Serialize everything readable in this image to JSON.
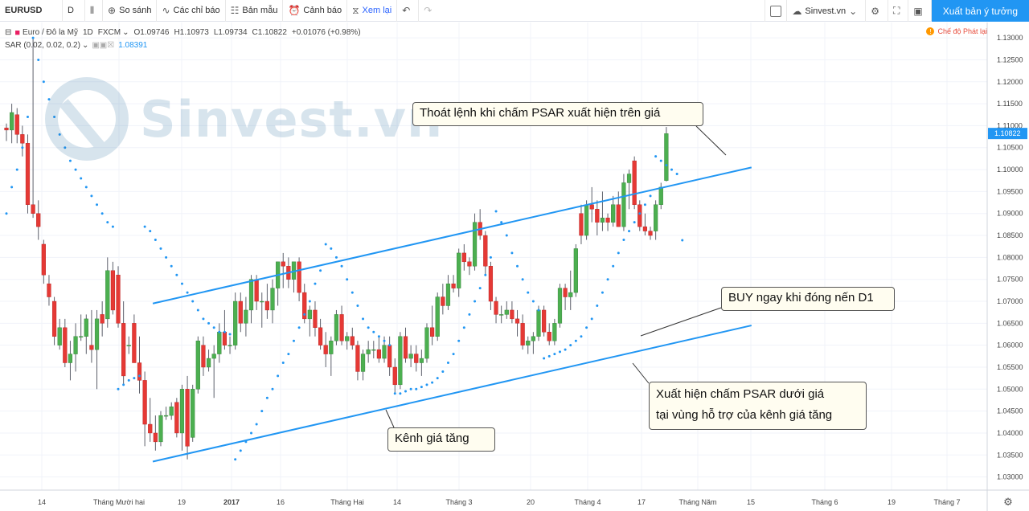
{
  "toolbar": {
    "symbol": "EURUSD",
    "interval": "D",
    "compare_label": "So sánh",
    "indicators_label": "Các chỉ báo",
    "templates_label": "Bản mẫu",
    "alert_label": "Cảnh báo",
    "replay_label": "Xem lại",
    "account_label": "Sinvest.vn",
    "publish_label": "Xuất bản ý tưởng"
  },
  "legend": {
    "name": "Euro / Đô la Mỹ",
    "timeframe": "1D",
    "exchange": "FXCM",
    "open": "O1.09746",
    "high": "H1.10973",
    "low": "L1.09734",
    "close": "C1.10822",
    "change": "+0.01076 (+0.98%)",
    "indicator": "SAR (0.02, 0.02, 0.2)",
    "indicator_value": "1.08391"
  },
  "mode_label": "Chế độ Phát lại",
  "watermark": "Sinvest.vn",
  "annotations": {
    "exit": "Thoát lệnh khi chấm PSAR xuất hiện trên giá",
    "buy": "BUY ngay khi đóng nến D1",
    "psar_line1": "Xuất hiện chấm PSAR dưới giá",
    "psar_line2": "tại vùng hỗ trợ của kênh giá tăng",
    "channel": "Kênh giá tăng"
  },
  "chart_data": {
    "type": "candlestick",
    "y_axis": {
      "ticks": [
        "1.13000",
        "1.12500",
        "1.12000",
        "1.11500",
        "1.11000",
        "1.10500",
        "1.10000",
        "1.09500",
        "1.09000",
        "1.08500",
        "1.08000",
        "1.07500",
        "1.07000",
        "1.06500",
        "1.06000",
        "1.05500",
        "1.05000",
        "1.04500",
        "1.04000",
        "1.03500",
        "1.03000"
      ],
      "min": 1.027,
      "max": 1.1335,
      "last_price": "1.10822"
    },
    "x_axis": {
      "ticks": [
        {
          "label": "14",
          "x": 52
        },
        {
          "label": "Tháng Mười hai",
          "x": 148
        },
        {
          "label": "19",
          "x": 226
        },
        {
          "label": "2017",
          "x": 288
        },
        {
          "label": "16",
          "x": 349
        },
        {
          "label": "Tháng Hai",
          "x": 432
        },
        {
          "label": "14",
          "x": 494
        },
        {
          "label": "Tháng 3",
          "x": 571
        },
        {
          "label": "20",
          "x": 660
        },
        {
          "label": "Tháng 4",
          "x": 731
        },
        {
          "label": "17",
          "x": 798
        },
        {
          "label": "Tháng Năm",
          "x": 868
        },
        {
          "label": "15",
          "x": 934
        },
        {
          "label": "Tháng 6",
          "x": 1026
        },
        {
          "label": "19",
          "x": 1109
        },
        {
          "label": "Tháng 7",
          "x": 1178
        }
      ]
    },
    "series_indicator": "SAR (0.02, 0.02, 0.2)",
    "candles": [
      [
        1.1095,
        1.1105,
        1.1065,
        1.109
      ],
      [
        1.109,
        1.115,
        1.106,
        1.113
      ],
      [
        1.1125,
        1.114,
        1.106,
        1.108
      ],
      [
        1.108,
        1.11,
        1.103,
        1.106
      ],
      [
        1.106,
        1.108,
        1.09,
        1.092
      ],
      [
        1.092,
        1.13,
        1.089,
        1.09
      ],
      [
        1.09,
        1.093,
        1.084,
        1.087
      ],
      [
        1.083,
        1.084,
        1.074,
        1.076
      ],
      [
        1.074,
        1.076,
        1.069,
        1.071
      ],
      [
        1.07,
        1.071,
        1.06,
        1.062
      ],
      [
        1.06,
        1.066,
        1.059,
        1.064
      ],
      [
        1.064,
        1.066,
        1.055,
        1.056
      ],
      [
        1.056,
        1.061,
        1.052,
        1.058
      ],
      [
        1.058,
        1.065,
        1.054,
        1.062
      ],
      [
        1.062,
        1.067,
        1.061,
        1.062
      ],
      [
        1.062,
        1.067,
        1.058,
        1.066
      ],
      [
        1.06,
        1.068,
        1.056,
        1.059
      ],
      [
        1.059,
        1.068,
        1.05,
        1.066
      ],
      [
        1.067,
        1.07,
        1.062,
        1.065
      ],
      [
        1.066,
        1.08,
        1.064,
        1.077
      ],
      [
        1.077,
        1.079,
        1.067,
        1.068
      ],
      [
        1.076,
        1.078,
        1.064,
        1.065
      ],
      [
        1.065,
        1.07,
        1.051,
        1.053
      ],
      [
        1.06,
        1.062,
        1.058,
        1.06
      ],
      [
        1.065,
        1.067,
        1.056,
        1.056
      ],
      [
        1.056,
        1.062,
        1.049,
        1.052
      ],
      [
        1.052,
        1.054,
        1.037,
        1.042
      ],
      [
        1.042,
        1.048,
        1.038,
        1.04
      ],
      [
        1.04,
        1.044,
        1.036,
        1.038
      ],
      [
        1.038,
        1.045,
        1.037,
        1.044
      ],
      [
        1.044,
        1.046,
        1.043,
        1.044
      ],
      [
        1.044,
        1.047,
        1.043,
        1.046
      ],
      [
        1.047,
        1.048,
        1.039,
        1.04
      ],
      [
        1.04,
        1.051,
        1.036,
        1.05
      ],
      [
        1.05,
        1.053,
        1.034,
        1.037
      ],
      [
        1.039,
        1.051,
        1.038,
        1.05
      ],
      [
        1.05,
        1.062,
        1.049,
        1.061
      ],
      [
        1.06,
        1.062,
        1.053,
        1.055
      ],
      [
        1.055,
        1.059,
        1.054,
        1.057
      ],
      [
        1.057,
        1.06,
        1.048,
        1.058
      ],
      [
        1.058,
        1.065,
        1.056,
        1.063
      ],
      [
        1.063,
        1.068,
        1.059,
        1.06
      ],
      [
        1.06,
        1.062,
        1.058,
        1.06
      ],
      [
        1.06,
        1.072,
        1.059,
        1.07
      ],
      [
        1.07,
        1.072,
        1.063,
        1.065
      ],
      [
        1.065,
        1.071,
        1.062,
        1.068
      ],
      [
        1.068,
        1.076,
        1.065,
        1.075
      ],
      [
        1.075,
        1.076,
        1.068,
        1.07
      ],
      [
        1.07,
        1.072,
        1.064,
        1.07
      ],
      [
        1.07,
        1.074,
        1.066,
        1.068
      ],
      [
        1.068,
        1.075,
        1.065,
        1.073
      ],
      [
        1.073,
        1.079,
        1.069,
        1.079
      ],
      [
        1.079,
        1.081,
        1.073,
        1.078
      ],
      [
        1.078,
        1.08,
        1.073,
        1.075
      ],
      [
        1.075,
        1.079,
        1.072,
        1.079
      ],
      [
        1.079,
        1.08,
        1.07,
        1.072
      ],
      [
        1.072,
        1.074,
        1.065,
        1.066
      ],
      [
        1.066,
        1.069,
        1.062,
        1.068
      ],
      [
        1.068,
        1.07,
        1.062,
        1.064
      ],
      [
        1.064,
        1.066,
        1.059,
        1.06
      ],
      [
        1.06,
        1.063,
        1.055,
        1.058
      ],
      [
        1.058,
        1.062,
        1.053,
        1.061
      ],
      [
        1.061,
        1.068,
        1.06,
        1.067
      ],
      [
        1.067,
        1.069,
        1.06,
        1.061
      ],
      [
        1.061,
        1.063,
        1.059,
        1.062
      ],
      [
        1.062,
        1.064,
        1.059,
        1.06
      ],
      [
        1.06,
        1.061,
        1.052,
        1.054
      ],
      [
        1.054,
        1.059,
        1.052,
        1.058
      ],
      [
        1.058,
        1.061,
        1.056,
        1.059
      ],
      [
        1.059,
        1.061,
        1.057,
        1.059
      ],
      [
        1.059,
        1.062,
        1.056,
        1.057
      ],
      [
        1.057,
        1.062,
        1.056,
        1.06
      ],
      [
        1.06,
        1.062,
        1.053,
        1.055
      ],
      [
        1.055,
        1.057,
        1.049,
        1.051
      ],
      [
        1.051,
        1.063,
        1.05,
        1.062
      ],
      [
        1.062,
        1.064,
        1.056,
        1.057
      ],
      [
        1.057,
        1.06,
        1.055,
        1.058
      ],
      [
        1.058,
        1.06,
        1.054,
        1.056
      ],
      [
        1.056,
        1.059,
        1.053,
        1.057
      ],
      [
        1.057,
        1.065,
        1.056,
        1.064
      ],
      [
        1.064,
        1.069,
        1.06,
        1.062
      ],
      [
        1.062,
        1.072,
        1.061,
        1.071
      ],
      [
        1.071,
        1.074,
        1.067,
        1.069
      ],
      [
        1.069,
        1.076,
        1.068,
        1.074
      ],
      [
        1.074,
        1.076,
        1.072,
        1.073
      ],
      [
        1.073,
        1.082,
        1.071,
        1.081
      ],
      [
        1.081,
        1.083,
        1.077,
        1.079
      ],
      [
        1.079,
        1.08,
        1.076,
        1.078
      ],
      [
        1.078,
        1.09,
        1.077,
        1.088
      ],
      [
        1.088,
        1.091,
        1.084,
        1.085
      ],
      [
        1.085,
        1.086,
        1.076,
        1.078
      ],
      [
        1.078,
        1.079,
        1.068,
        1.07
      ],
      [
        1.07,
        1.071,
        1.065,
        1.067
      ],
      [
        1.067,
        1.069,
        1.065,
        1.067
      ],
      [
        1.067,
        1.07,
        1.066,
        1.068
      ],
      [
        1.068,
        1.07,
        1.065,
        1.066
      ],
      [
        1.066,
        1.068,
        1.062,
        1.065
      ],
      [
        1.065,
        1.067,
        1.059,
        1.06
      ],
      [
        1.06,
        1.062,
        1.058,
        1.061
      ],
      [
        1.061,
        1.063,
        1.058,
        1.062
      ],
      [
        1.062,
        1.069,
        1.061,
        1.068
      ],
      [
        1.068,
        1.069,
        1.062,
        1.063
      ],
      [
        1.063,
        1.065,
        1.06,
        1.061
      ],
      [
        1.061,
        1.066,
        1.06,
        1.065
      ],
      [
        1.065,
        1.074,
        1.064,
        1.073
      ],
      [
        1.073,
        1.074,
        1.068,
        1.071
      ],
      [
        1.071,
        1.077,
        1.068,
        1.072
      ],
      [
        1.072,
        1.083,
        1.071,
        1.082
      ],
      [
        1.09,
        1.092,
        1.083,
        1.085
      ],
      [
        1.085,
        1.093,
        1.084,
        1.092
      ],
      [
        1.092,
        1.096,
        1.088,
        1.091
      ],
      [
        1.091,
        1.093,
        1.085,
        1.088
      ],
      [
        1.088,
        1.095,
        1.086,
        1.089
      ],
      [
        1.089,
        1.09,
        1.086,
        1.088
      ],
      [
        1.088,
        1.094,
        1.087,
        1.092
      ],
      [
        1.092,
        1.095,
        1.087,
        1.087
      ],
      [
        1.087,
        1.099,
        1.086,
        1.097
      ],
      [
        1.097,
        1.1,
        1.091,
        1.099
      ],
      [
        1.102,
        1.103,
        1.091,
        1.092
      ],
      [
        1.092,
        1.093,
        1.086,
        1.087
      ],
      [
        1.087,
        1.09,
        1.085,
        1.086
      ],
      [
        1.086,
        1.087,
        1.084,
        1.085
      ],
      [
        1.086,
        1.093,
        1.084,
        1.092
      ],
      [
        1.092,
        1.097,
        1.091,
        1.096
      ],
      [
        1.0975,
        1.1097,
        1.0973,
        1.1082
      ]
    ],
    "sar": [
      1.09,
      1.096,
      1.1,
      1.105,
      1.112,
      1.13,
      1.125,
      1.12,
      1.116,
      1.112,
      1.108,
      1.105,
      1.102,
      1.1,
      1.098,
      1.096,
      1.094,
      1.092,
      1.09,
      1.088,
      1.087,
      1.05,
      1.051,
      1.052,
      1.0525,
      1.053,
      1.087,
      1.086,
      1.084,
      1.082,
      1.08,
      1.078,
      1.076,
      1.074,
      1.072,
      1.07,
      1.068,
      1.066,
      1.065,
      1.064,
      1.063,
      1.063,
      1.0625,
      1.034,
      1.036,
      1.038,
      1.04,
      1.042,
      1.045,
      1.048,
      1.05,
      1.053,
      1.056,
      1.058,
      1.061,
      1.064,
      1.067,
      1.07,
      1.074,
      1.077,
      1.083,
      1.082,
      1.08,
      1.078,
      1.075,
      1.072,
      1.069,
      1.066,
      1.064,
      1.063,
      1.062,
      1.061,
      1.06,
      1.049,
      1.049,
      1.0495,
      1.05,
      1.05,
      1.0505,
      1.051,
      1.0515,
      1.0525,
      1.054,
      1.056,
      1.058,
      1.061,
      1.064,
      1.067,
      1.07,
      1.073,
      1.076,
      1.08,
      1.0905,
      1.088,
      1.085,
      1.081,
      1.078,
      1.075,
      1.072,
      1.07,
      1.068,
      1.057,
      1.0575,
      1.058,
      1.0585,
      1.059,
      1.06,
      1.061,
      1.062,
      1.064,
      1.066,
      1.069,
      1.072,
      1.075,
      1.078,
      1.081,
      1.084,
      1.086,
      1.088,
      1.09,
      1.092,
      1.094,
      1.103,
      1.102,
      1.101,
      1.1,
      1.099,
      1.0839
    ]
  }
}
